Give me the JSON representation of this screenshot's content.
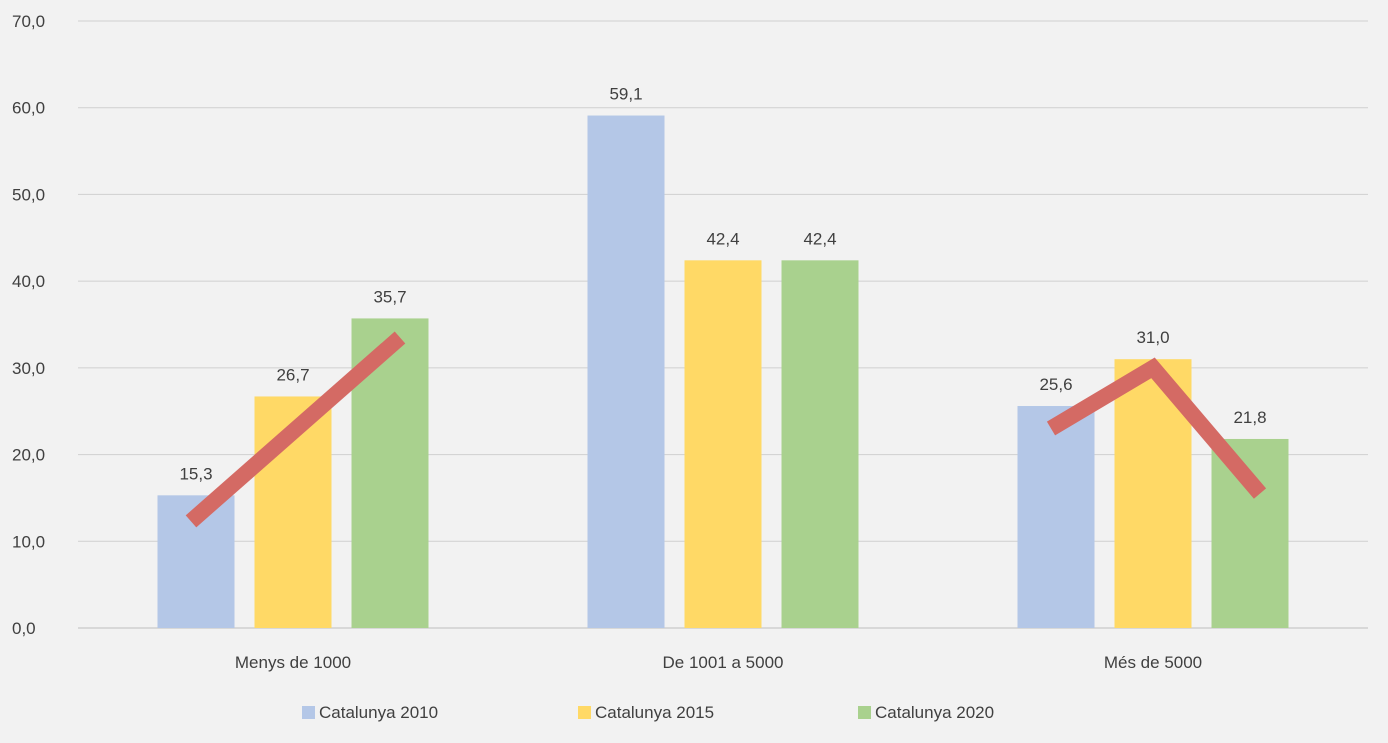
{
  "chart_data": {
    "type": "bar",
    "title": "",
    "xlabel": "",
    "ylabel": "",
    "ylim": [
      0,
      70
    ],
    "yticks": [
      "0,0",
      "10,0",
      "20,0",
      "30,0",
      "40,0",
      "50,0",
      "60,0",
      "70,0"
    ],
    "ytick_values": [
      0,
      10,
      20,
      30,
      40,
      50,
      60,
      70
    ],
    "grid": true,
    "legend_position": "bottom",
    "categories": [
      "Menys de 1000",
      "De 1001 a 5000",
      "Més de 5000"
    ],
    "series": [
      {
        "name": "Catalunya 2010",
        "color": "#b4c7e7",
        "values": [
          15.3,
          59.1,
          25.6
        ],
        "labels": [
          "15,3",
          "59,1",
          "25,6"
        ]
      },
      {
        "name": "Catalunya 2015",
        "color": "#ffd966",
        "values": [
          26.7,
          42.4,
          31.0
        ],
        "labels": [
          "26,7",
          "42,4",
          "31,0"
        ]
      },
      {
        "name": "Catalunya 2020",
        "color": "#a9d18e",
        "values": [
          35.7,
          42.4,
          21.8
        ],
        "labels": [
          "35,7",
          "42,4",
          "21,8"
        ]
      }
    ],
    "annotations": [
      {
        "type": "trend-arrow",
        "category": "Menys de 1000",
        "color": "#d46a64",
        "from_value": 12.3,
        "to_value": 33.5,
        "from_series": 0,
        "to_series": 2
      },
      {
        "type": "trend-arrow",
        "category": "Més de 5000",
        "color": "#d46a64",
        "from_value": 23.0,
        "peak_value": 30.0,
        "to_value": 15.5,
        "from_series": 0,
        "peak_series": 1,
        "to_series": 2
      }
    ]
  }
}
